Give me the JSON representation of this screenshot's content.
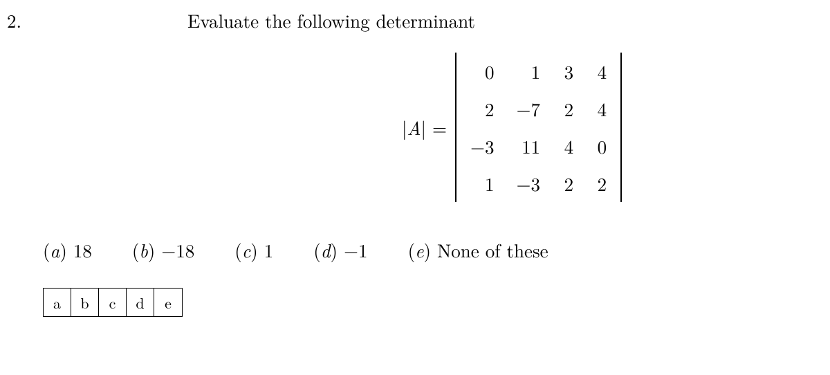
{
  "question": {
    "number": "2.",
    "title": "Evaluate the following determinant",
    "formula_label_prefix": "|",
    "formula_variable": "A",
    "formula_label_suffix": "| =",
    "matrix": {
      "rows": [
        [
          "0",
          "1",
          "3",
          "4"
        ],
        [
          "2",
          "−7",
          "2",
          "4"
        ],
        [
          "−3",
          "11",
          "4",
          "0"
        ],
        [
          "1",
          "−3",
          "2",
          "2"
        ]
      ],
      "cell_fontsize": 27,
      "bar_color": "#000000"
    }
  },
  "options": [
    {
      "label": "a",
      "value": "18"
    },
    {
      "label": "b",
      "value": "−18"
    },
    {
      "label": "c",
      "value": "1"
    },
    {
      "label": "d",
      "value": "−1"
    },
    {
      "label": "e",
      "value": "None of these"
    }
  ],
  "answer_boxes": [
    "a",
    "b",
    "c",
    "d",
    "e"
  ],
  "colors": {
    "text": "#000000",
    "background": "#ffffff",
    "border": "#000000"
  },
  "typography": {
    "base_font": "Latin Modern Roman, Computer Modern, Georgia, serif",
    "title_fontsize": 27,
    "option_fontsize": 27,
    "answer_box_fontsize": 22
  }
}
